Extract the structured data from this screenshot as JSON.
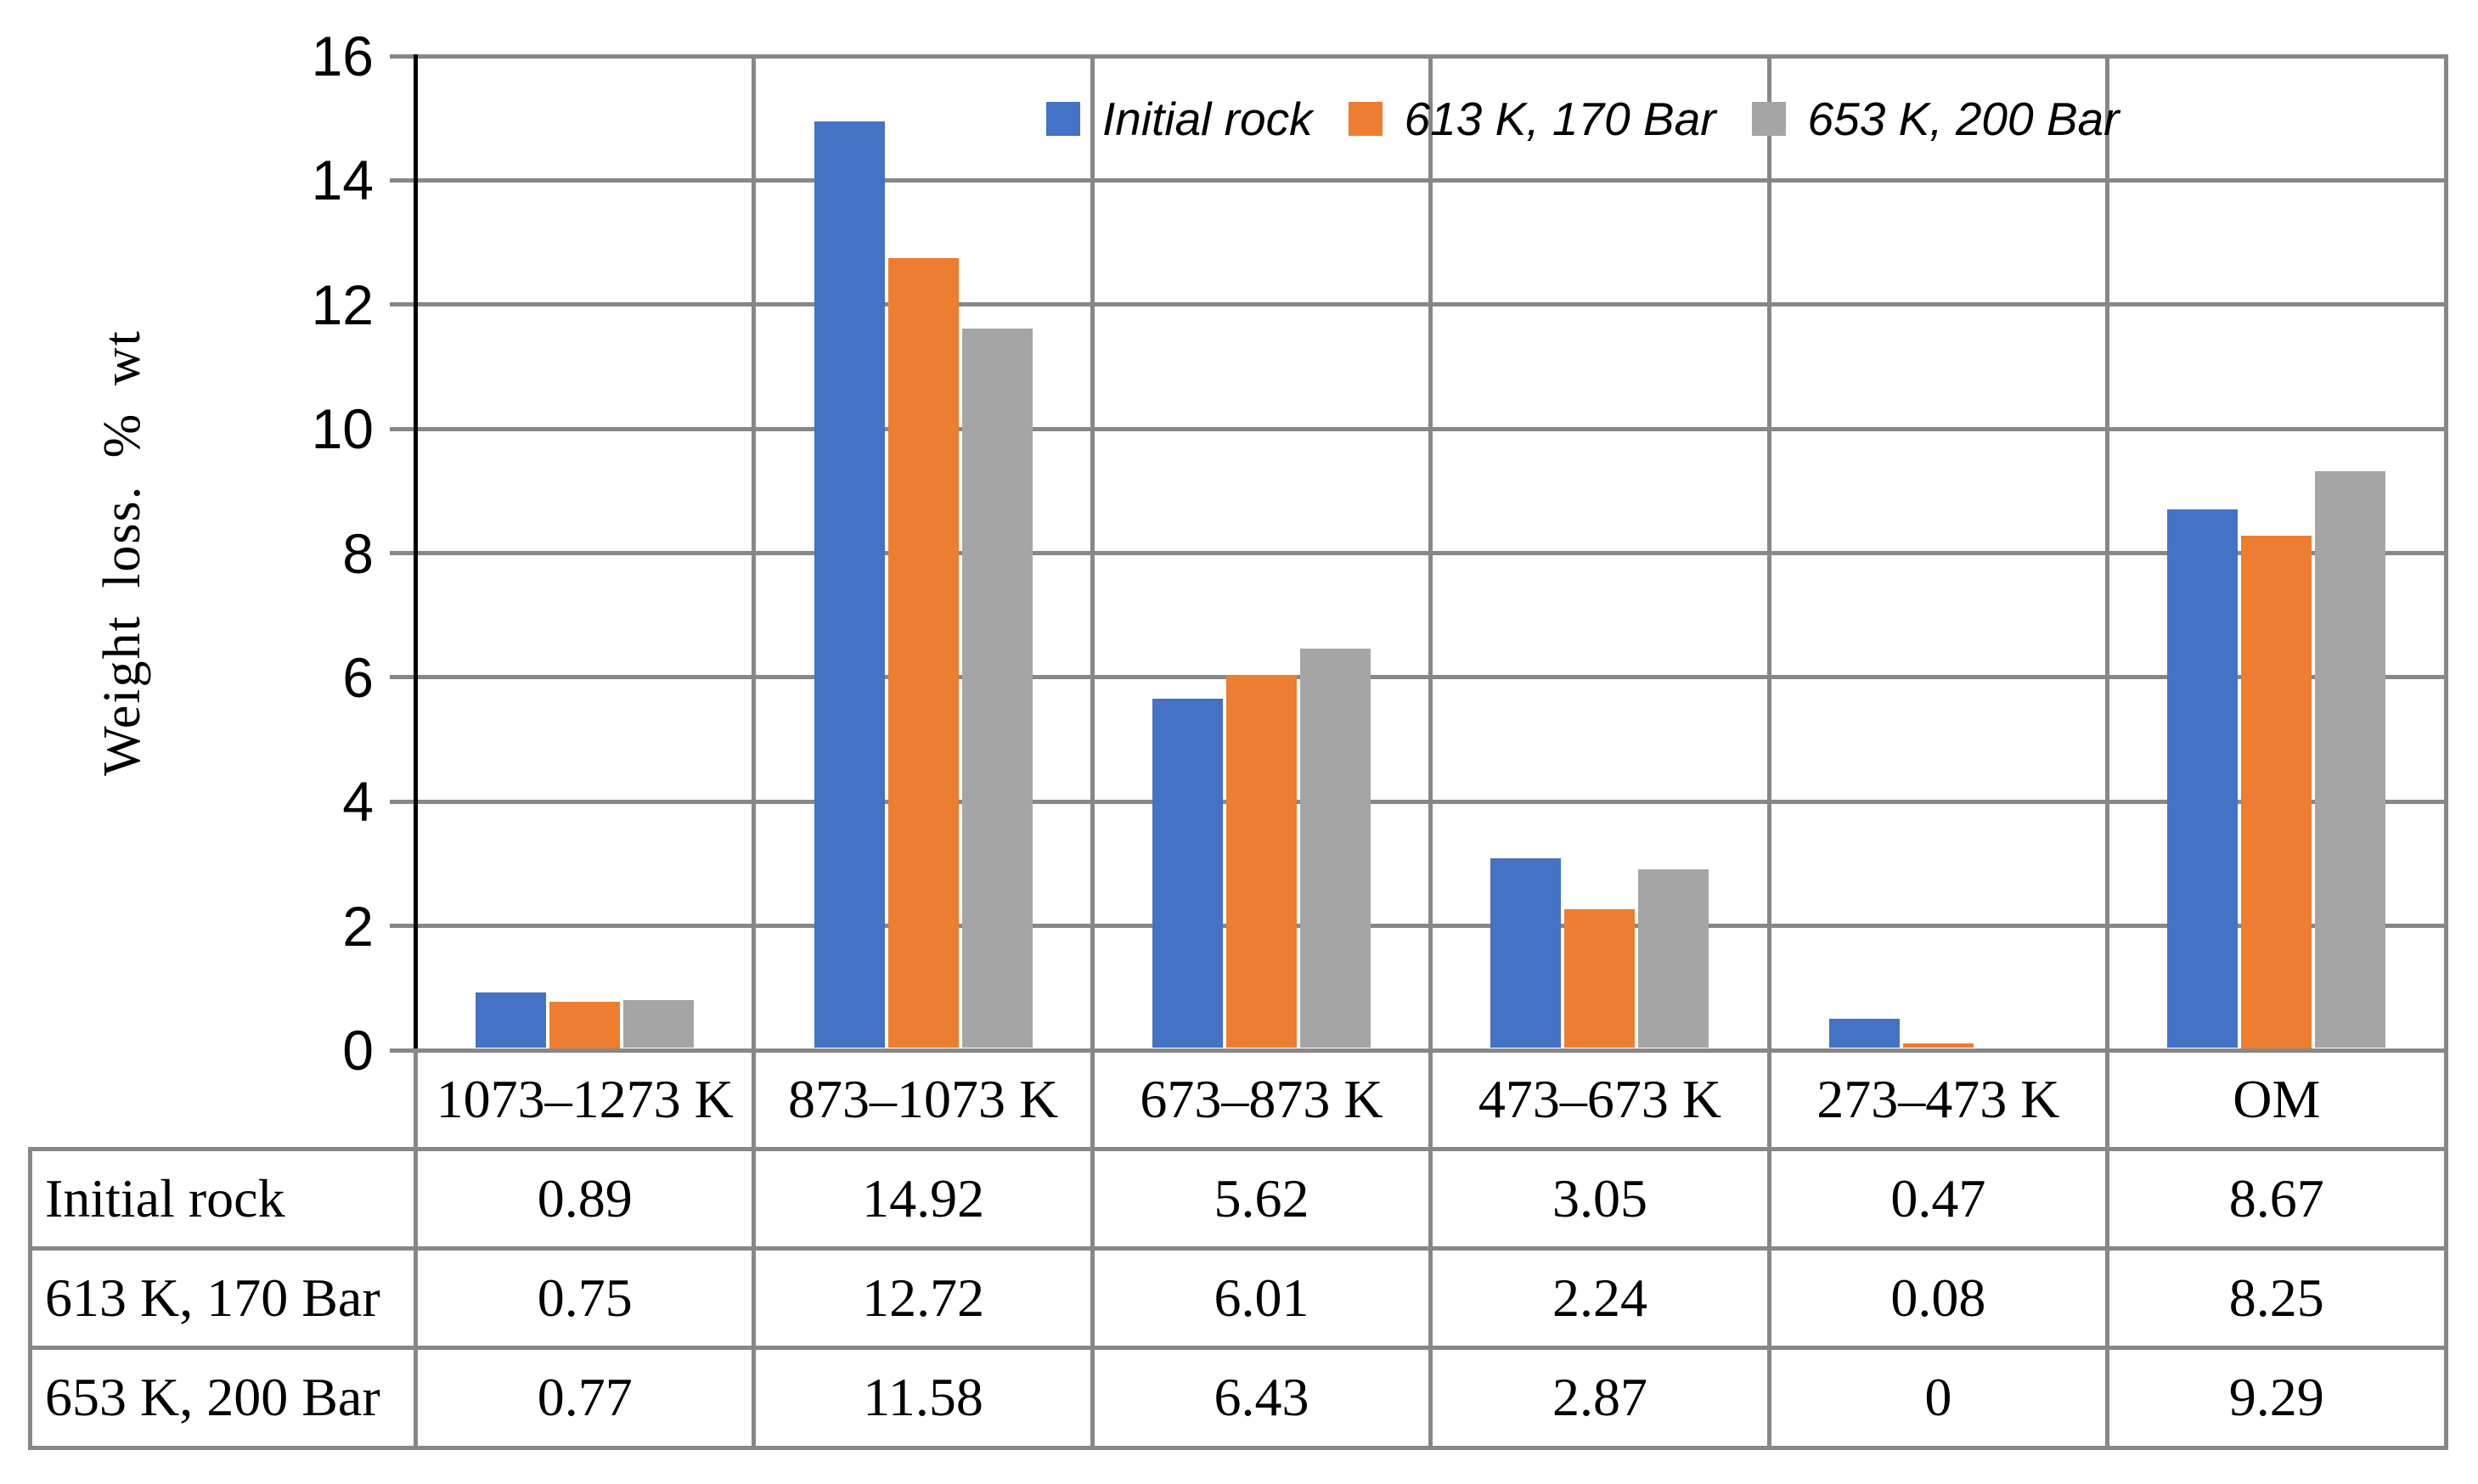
{
  "chart_data": {
    "type": "bar",
    "title": "",
    "ylabel": "Weight loss. % wt",
    "xlabel": "",
    "ylim": [
      0,
      16
    ],
    "ytick_interval": 2,
    "yticks": [
      "16",
      "14",
      "12",
      "10",
      "8",
      "6",
      "4",
      "2",
      "0"
    ],
    "categories": [
      "1073–1273 K",
      "873–1073 K",
      "673–873 K",
      "473–673 K",
      "273–473 K",
      "OM"
    ],
    "series": [
      {
        "name": "Initial rock",
        "color": "#4472C4",
        "values": [
          0.89,
          14.92,
          5.62,
          3.05,
          0.47,
          8.67
        ]
      },
      {
        "name": "613 K, 170 Bar",
        "color": "#ED7D31",
        "values": [
          0.75,
          12.72,
          6.01,
          2.24,
          0.08,
          8.25
        ]
      },
      {
        "name": "653 K, 200 Bar",
        "color": "#A5A5A5",
        "values": [
          0.77,
          11.58,
          6.43,
          2.87,
          0,
          9.29
        ]
      }
    ],
    "legend_position": "top-inside",
    "grid": {
      "horizontal": true,
      "vertical": true,
      "color": "#878787"
    },
    "axis_color": "#000000",
    "data_table_shown": true
  }
}
